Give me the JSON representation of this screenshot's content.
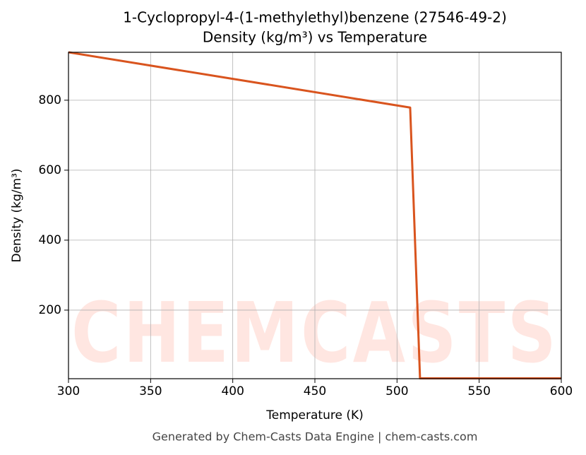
{
  "chart_data": {
    "type": "line",
    "title": "1-Cyclopropyl-4-(1-methylethyl)benzene (27546-49-2)",
    "subtitle": "Density (kg/m³) vs Temperature",
    "x_label": "Temperature (K)",
    "y_label": "Density (kg/m³)",
    "x": [
      300,
      508,
      514,
      600
    ],
    "series": [
      {
        "name": "Density",
        "color": "#d9541e",
        "values": [
          937,
          779,
          5,
          5
        ]
      }
    ],
    "xlim": [
      300,
      600
    ],
    "xticks": [
      300,
      350,
      400,
      450,
      500,
      550,
      600
    ],
    "ylim": [
      4,
      937
    ],
    "yticks": [
      200,
      400,
      600,
      800
    ],
    "grid": true,
    "watermark": "CHEMCASTS",
    "footer": "Generated by Chem-Casts Data Engine | chem-casts.com"
  }
}
